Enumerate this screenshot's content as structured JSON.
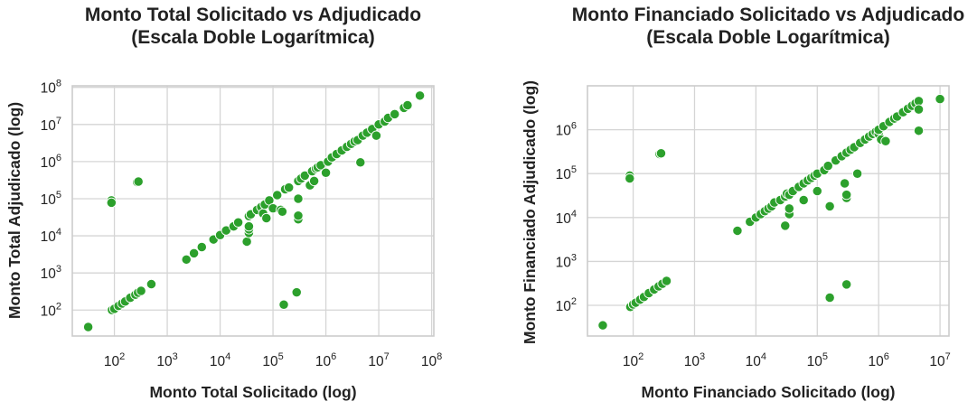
{
  "colors": {
    "points": "#2ca02c"
  },
  "chart_data": [
    {
      "type": "scatter",
      "title": [
        "Monto Total Solicitado vs Adjudicado",
        "(Escala Doble Logarítmica)"
      ],
      "xlabel": "Monto Total Solicitado (log)",
      "ylabel": "Monto Total Adjudicado (log)",
      "xscale": "log",
      "yscale": "log",
      "xlim": [
        16,
        110000000
      ],
      "ylim": [
        20,
        110000000
      ],
      "x_ticks": [
        {
          "base": "10",
          "exp": "2",
          "value": 100
        },
        {
          "base": "10",
          "exp": "3",
          "value": 1000
        },
        {
          "base": "10",
          "exp": "4",
          "value": 10000
        },
        {
          "base": "10",
          "exp": "5",
          "value": 100000
        },
        {
          "base": "10",
          "exp": "6",
          "value": 1000000
        },
        {
          "base": "10",
          "exp": "7",
          "value": 10000000
        },
        {
          "base": "10",
          "exp": "8",
          "value": 100000000
        }
      ],
      "y_ticks": [
        {
          "base": "10",
          "exp": "2",
          "value": 100
        },
        {
          "base": "10",
          "exp": "3",
          "value": 1000
        },
        {
          "base": "10",
          "exp": "4",
          "value": 10000
        },
        {
          "base": "10",
          "exp": "5",
          "value": 100000
        },
        {
          "base": "10",
          "exp": "6",
          "value": 1000000
        },
        {
          "base": "10",
          "exp": "7",
          "value": 10000000
        },
        {
          "base": "10",
          "exp": "8",
          "value": 100000000
        }
      ],
      "grid": true,
      "points": [
        [
          32,
          35
        ],
        [
          88,
          90000
        ],
        [
          88,
          78000
        ],
        [
          270,
          280000
        ],
        [
          285,
          290000
        ],
        [
          90,
          100
        ],
        [
          100,
          108
        ],
        [
          120,
          130
        ],
        [
          140,
          150
        ],
        [
          160,
          170
        ],
        [
          200,
          215
        ],
        [
          250,
          260
        ],
        [
          280,
          295
        ],
        [
          320,
          330
        ],
        [
          500,
          500
        ],
        [
          2300,
          2300
        ],
        [
          3200,
          3400
        ],
        [
          4500,
          5000
        ],
        [
          7500,
          8000
        ],
        [
          10000,
          10500
        ],
        [
          13000,
          14000
        ],
        [
          18000,
          18000
        ],
        [
          22000,
          23000
        ],
        [
          32000,
          7000
        ],
        [
          35000,
          12000
        ],
        [
          35000,
          15000
        ],
        [
          35000,
          18000
        ],
        [
          35000,
          34000
        ],
        [
          38000,
          38000
        ],
        [
          50000,
          50000
        ],
        [
          60000,
          60000
        ],
        [
          65000,
          40000
        ],
        [
          70000,
          70000
        ],
        [
          75000,
          30000
        ],
        [
          85000,
          90000
        ],
        [
          100000,
          55000
        ],
        [
          120000,
          125000
        ],
        [
          140000,
          50000
        ],
        [
          150000,
          45000
        ],
        [
          160000,
          140
        ],
        [
          170000,
          180000
        ],
        [
          200000,
          200000
        ],
        [
          280000,
          300
        ],
        [
          300000,
          28000
        ],
        [
          300000,
          35000
        ],
        [
          300000,
          100000
        ],
        [
          300000,
          300000
        ],
        [
          340000,
          350000
        ],
        [
          400000,
          420000
        ],
        [
          500000,
          230000
        ],
        [
          550000,
          550000
        ],
        [
          600000,
          300000
        ],
        [
          650000,
          650000
        ],
        [
          700000,
          700000
        ],
        [
          800000,
          800000
        ],
        [
          1000000,
          500000
        ],
        [
          1100000,
          1000000
        ],
        [
          1300000,
          1300000
        ],
        [
          1600000,
          1600000
        ],
        [
          2000000,
          2000000
        ],
        [
          2500000,
          2500000
        ],
        [
          3000000,
          3000000
        ],
        [
          3500000,
          3500000
        ],
        [
          4000000,
          3800000
        ],
        [
          4500000,
          950000
        ],
        [
          5000000,
          5000000
        ],
        [
          6000000,
          6000000
        ],
        [
          7500000,
          7500000
        ],
        [
          9000000,
          5000000
        ],
        [
          10000000,
          10000000
        ],
        [
          13000000,
          12000000
        ],
        [
          15000000,
          15000000
        ],
        [
          20000000,
          19000000
        ],
        [
          30000000,
          28000000
        ],
        [
          35000000,
          33000000
        ],
        [
          60000000,
          60000000
        ]
      ]
    },
    {
      "type": "scatter",
      "title": [
        "Monto Financiado Solicitado vs Adjudicado",
        "(Escala Doble Logarítmica)"
      ],
      "xlabel": "Monto Financiado Solicitado (log)",
      "ylabel": "Monto Financiado Adjudicado (log)",
      "xscale": "log",
      "yscale": "log",
      "xlim": [
        18,
        14000000
      ],
      "ylim": [
        20,
        10000000
      ],
      "x_ticks": [
        {
          "base": "10",
          "exp": "2",
          "value": 100
        },
        {
          "base": "10",
          "exp": "3",
          "value": 1000
        },
        {
          "base": "10",
          "exp": "4",
          "value": 10000
        },
        {
          "base": "10",
          "exp": "5",
          "value": 100000
        },
        {
          "base": "10",
          "exp": "6",
          "value": 1000000
        },
        {
          "base": "10",
          "exp": "7",
          "value": 10000000
        }
      ],
      "y_ticks": [
        {
          "base": "10",
          "exp": "2",
          "value": 100
        },
        {
          "base": "10",
          "exp": "3",
          "value": 1000
        },
        {
          "base": "10",
          "exp": "4",
          "value": 10000
        },
        {
          "base": "10",
          "exp": "5",
          "value": 100000
        },
        {
          "base": "10",
          "exp": "6",
          "value": 1000000
        }
      ],
      "grid": true,
      "points": [
        [
          32,
          35
        ],
        [
          88,
          90000
        ],
        [
          88,
          78000
        ],
        [
          270,
          280000
        ],
        [
          285,
          290000
        ],
        [
          90,
          92
        ],
        [
          100,
          105
        ],
        [
          110,
          115
        ],
        [
          130,
          135
        ],
        [
          150,
          155
        ],
        [
          180,
          190
        ],
        [
          220,
          230
        ],
        [
          260,
          270
        ],
        [
          300,
          310
        ],
        [
          350,
          360
        ],
        [
          5000,
          5000
        ],
        [
          8000,
          8000
        ],
        [
          10000,
          10000
        ],
        [
          12000,
          12000
        ],
        [
          14000,
          14000
        ],
        [
          16000,
          16000
        ],
        [
          18000,
          18000
        ],
        [
          20000,
          22000
        ],
        [
          25000,
          25000
        ],
        [
          30000,
          6500
        ],
        [
          30000,
          30000
        ],
        [
          32000,
          35000
        ],
        [
          35000,
          12000
        ],
        [
          35000,
          16000
        ],
        [
          35000,
          33000
        ],
        [
          40000,
          40000
        ],
        [
          50000,
          50000
        ],
        [
          60000,
          25000
        ],
        [
          60000,
          60000
        ],
        [
          70000,
          70000
        ],
        [
          80000,
          80000
        ],
        [
          90000,
          90000
        ],
        [
          100000,
          40000
        ],
        [
          100000,
          100000
        ],
        [
          130000,
          120000
        ],
        [
          150000,
          150000
        ],
        [
          160000,
          18000
        ],
        [
          160000,
          150
        ],
        [
          200000,
          200000
        ],
        [
          250000,
          250000
        ],
        [
          280000,
          60000
        ],
        [
          300000,
          28000
        ],
        [
          300000,
          33000
        ],
        [
          300000,
          300000
        ],
        [
          300000,
          300
        ],
        [
          350000,
          350000
        ],
        [
          400000,
          400000
        ],
        [
          450000,
          100000
        ],
        [
          500000,
          500000
        ],
        [
          600000,
          600000
        ],
        [
          700000,
          700000
        ],
        [
          800000,
          800000
        ],
        [
          900000,
          900000
        ],
        [
          1000000,
          800000
        ],
        [
          1000000,
          1000000
        ],
        [
          1100000,
          600000
        ],
        [
          1200000,
          1200000
        ],
        [
          1300000,
          550000
        ],
        [
          1500000,
          1500000
        ],
        [
          1800000,
          1800000
        ],
        [
          2000000,
          2000000
        ],
        [
          2500000,
          2500000
        ],
        [
          3000000,
          3000000
        ],
        [
          3500000,
          3500000
        ],
        [
          4000000,
          4000000
        ],
        [
          4500000,
          4500000
        ],
        [
          4500000,
          2900000
        ],
        [
          4500000,
          950000
        ],
        [
          10000000,
          5000000
        ]
      ]
    }
  ]
}
